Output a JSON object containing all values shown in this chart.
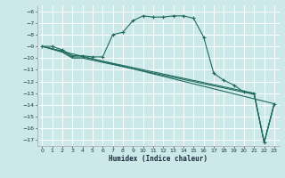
{
  "xlabel": "Humidex (Indice chaleur)",
  "bg_color": "#cce8e8",
  "grid_color": "#ffffff",
  "line_color": "#1e6b5e",
  "xlim": [
    -0.5,
    23.5
  ],
  "ylim": [
    -17.5,
    -5.5
  ],
  "yticks": [
    -6,
    -7,
    -8,
    -9,
    -10,
    -11,
    -12,
    -13,
    -14,
    -15,
    -16,
    -17
  ],
  "xticks": [
    0,
    1,
    2,
    3,
    4,
    5,
    6,
    7,
    8,
    9,
    10,
    11,
    12,
    13,
    14,
    15,
    16,
    17,
    18,
    19,
    20,
    21,
    22,
    23
  ],
  "series1_x": [
    0,
    1,
    2,
    3,
    4,
    5,
    6,
    7,
    8,
    9,
    10,
    11,
    12,
    13,
    14,
    15,
    16,
    17,
    18,
    19,
    20,
    21,
    22,
    23
  ],
  "series1_y": [
    -9.0,
    -9.0,
    -9.3,
    -9.8,
    -9.8,
    -9.9,
    -9.9,
    -8.0,
    -7.8,
    -6.8,
    -6.4,
    -6.5,
    -6.5,
    -6.4,
    -6.4,
    -6.6,
    -8.2,
    -11.3,
    -11.9,
    -12.3,
    -12.9,
    -13.0,
    -17.2,
    -13.9
  ],
  "series2_x": [
    0,
    2,
    3,
    4,
    21,
    22,
    23
  ],
  "series2_y": [
    -9.0,
    -9.4,
    -9.9,
    -9.9,
    -13.0,
    -17.2,
    -13.9
  ],
  "series3_x": [
    0,
    2,
    3,
    4,
    21,
    22,
    23
  ],
  "series3_y": [
    -9.0,
    -9.5,
    -10.0,
    -10.0,
    -13.1,
    -17.2,
    -13.9
  ],
  "series4_x": [
    0,
    23
  ],
  "series4_y": [
    -9.0,
    -13.9
  ]
}
